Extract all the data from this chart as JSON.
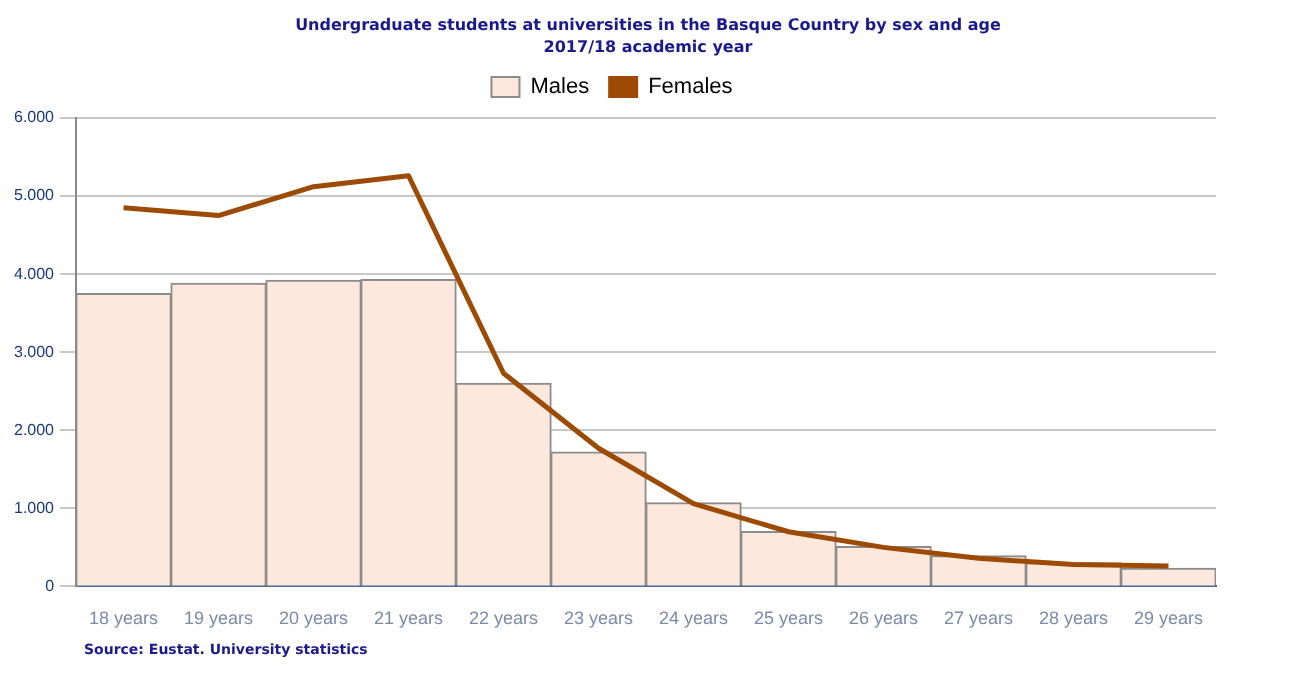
{
  "chart_data": {
    "type": "bar",
    "title": "Undergraduate students at universities in the Basque Country by sex and age",
    "subtitle": "2017/18 academic year",
    "categories": [
      "18 years",
      "19 years",
      "20 years",
      "21 years",
      "22 years",
      "23 years",
      "24 years",
      "25 years",
      "26 years",
      "27 years",
      "28 years",
      "29 years"
    ],
    "series": [
      {
        "name": "Males",
        "color": "#fce8dc",
        "values": [
          3750,
          3880,
          3920,
          3930,
          2600,
          1720,
          1070,
          700,
          510,
          390,
          300,
          230
        ]
      },
      {
        "name": "Females",
        "type": "line",
        "color": "#9c4a04",
        "values": [
          4850,
          4750,
          5120,
          5260,
          2730,
          1770,
          1060,
          700,
          500,
          360,
          280,
          260
        ]
      }
    ],
    "ylim": [
      0,
      6000
    ],
    "yticks": [
      {
        "value": 0,
        "label": "0"
      },
      {
        "value": 1000,
        "label": "1.000"
      },
      {
        "value": 2000,
        "label": "2.000"
      },
      {
        "value": 3000,
        "label": "3.000"
      },
      {
        "value": 4000,
        "label": "4.000"
      },
      {
        "value": 5000,
        "label": "5.000"
      },
      {
        "value": 6000,
        "label": "6.000"
      }
    ],
    "grid": "y",
    "legend": "top",
    "marker": "none",
    "annotations": [
      "Source: Eustat. University statistics"
    ]
  }
}
